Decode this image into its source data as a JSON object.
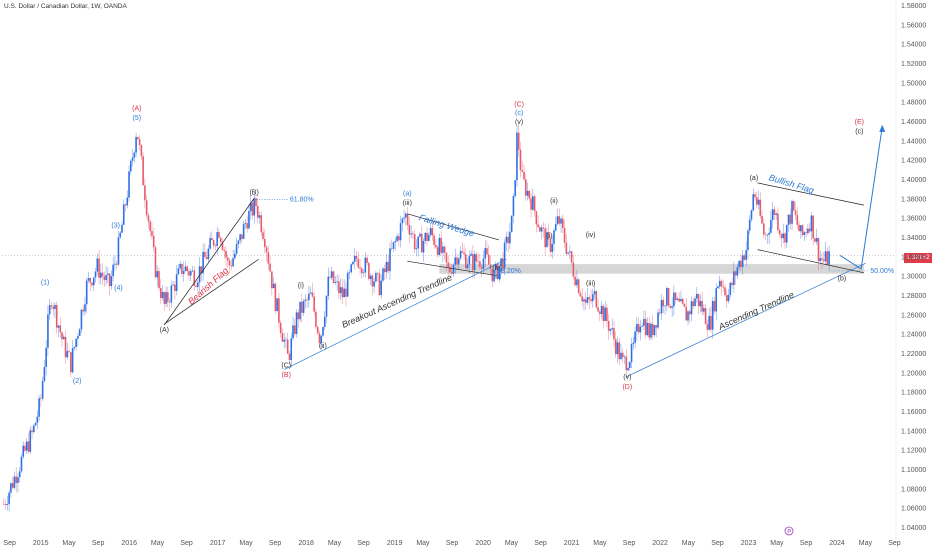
{
  "header": {
    "title": "U.S. Dollar / Canadian Dollar, 1W, OANDA"
  },
  "current_price": {
    "label": "1.32182",
    "color": "#e03b4b"
  },
  "colors": {
    "up": "#2d6fe6",
    "down": "#e85a6a",
    "annotation_blue": "#2d7ad6",
    "annotation_red": "#d9344a",
    "annotation_dark": "#333333",
    "zone": "#c8c8c8"
  },
  "chart_data": {
    "type": "candlestick",
    "title": "U.S. Dollar / Canadian Dollar, 1W, OANDA",
    "x_ticks": [
      "Sep",
      "2015",
      "May",
      "Sep",
      "2016",
      "May",
      "Sep",
      "2017",
      "May",
      "Sep",
      "2018",
      "May",
      "Sep",
      "2019",
      "May",
      "Sep",
      "2020",
      "May",
      "Sep",
      "2021",
      "May",
      "Sep",
      "2022",
      "May",
      "Sep",
      "2023",
      "May",
      "Sep",
      "2024",
      "May",
      "Sep"
    ],
    "y_ticks": [
      "1.58000",
      "1.56000",
      "1.54000",
      "1.52000",
      "1.50000",
      "1.48000",
      "1.46000",
      "1.44000",
      "1.42000",
      "1.40000",
      "1.38000",
      "1.36000",
      "1.34000",
      "1.32000",
      "1.30000",
      "1.28000",
      "1.26000",
      "1.24000",
      "1.22000",
      "1.20000",
      "1.18000",
      "1.16000",
      "1.14000",
      "1.12000",
      "1.10000",
      "1.08000",
      "1.06000",
      "1.04000"
    ],
    "ylim": [
      1.04,
      1.58
    ],
    "xlim": [
      2014.58,
      2024.33
    ],
    "price_path": [
      [
        2014.6,
        1.065
      ],
      [
        2014.75,
        1.1
      ],
      [
        2014.92,
        1.14
      ],
      [
        2015.0,
        1.17
      ],
      [
        2015.08,
        1.25
      ],
      [
        2015.12,
        1.28
      ],
      [
        2015.25,
        1.23
      ],
      [
        2015.33,
        1.21
      ],
      [
        2015.42,
        1.25
      ],
      [
        2015.5,
        1.29
      ],
      [
        2015.62,
        1.31
      ],
      [
        2015.75,
        1.29
      ],
      [
        2015.85,
        1.33
      ],
      [
        2015.95,
        1.39
      ],
      [
        2016.05,
        1.455
      ],
      [
        2016.12,
        1.4
      ],
      [
        2016.25,
        1.31
      ],
      [
        2016.35,
        1.27
      ],
      [
        2016.45,
        1.29
      ],
      [
        2016.55,
        1.31
      ],
      [
        2016.7,
        1.3
      ],
      [
        2016.85,
        1.33
      ],
      [
        2016.95,
        1.35
      ],
      [
        2017.05,
        1.31
      ],
      [
        2017.15,
        1.33
      ],
      [
        2017.25,
        1.36
      ],
      [
        2017.35,
        1.375
      ],
      [
        2017.45,
        1.34
      ],
      [
        2017.55,
        1.28
      ],
      [
        2017.7,
        1.215
      ],
      [
        2017.8,
        1.26
      ],
      [
        2017.95,
        1.28
      ],
      [
        2018.05,
        1.235
      ],
      [
        2018.15,
        1.3
      ],
      [
        2018.3,
        1.28
      ],
      [
        2018.45,
        1.32
      ],
      [
        2018.55,
        1.31
      ],
      [
        2018.7,
        1.29
      ],
      [
        2018.85,
        1.33
      ],
      [
        2018.98,
        1.365
      ],
      [
        2019.1,
        1.33
      ],
      [
        2019.25,
        1.345
      ],
      [
        2019.35,
        1.33
      ],
      [
        2019.45,
        1.305
      ],
      [
        2019.55,
        1.325
      ],
      [
        2019.7,
        1.315
      ],
      [
        2019.85,
        1.32
      ],
      [
        2019.95,
        1.3
      ],
      [
        2020.05,
        1.32
      ],
      [
        2020.15,
        1.36
      ],
      [
        2020.2,
        1.45
      ],
      [
        2020.25,
        1.4
      ],
      [
        2020.35,
        1.38
      ],
      [
        2020.45,
        1.35
      ],
      [
        2020.55,
        1.33
      ],
      [
        2020.65,
        1.36
      ],
      [
        2020.8,
        1.31
      ],
      [
        2020.95,
        1.27
      ],
      [
        2021.05,
        1.28
      ],
      [
        2021.2,
        1.25
      ],
      [
        2021.35,
        1.21
      ],
      [
        2021.45,
        1.22
      ],
      [
        2021.55,
        1.26
      ],
      [
        2021.65,
        1.24
      ],
      [
        2021.8,
        1.28
      ],
      [
        2021.95,
        1.27
      ],
      [
        2022.05,
        1.26
      ],
      [
        2022.15,
        1.28
      ],
      [
        2022.3,
        1.25
      ],
      [
        2022.4,
        1.3
      ],
      [
        2022.5,
        1.28
      ],
      [
        2022.6,
        1.31
      ],
      [
        2022.7,
        1.33
      ],
      [
        2022.78,
        1.39
      ],
      [
        2022.9,
        1.34
      ],
      [
        2023.0,
        1.37
      ],
      [
        2023.1,
        1.34
      ],
      [
        2023.2,
        1.37
      ],
      [
        2023.3,
        1.34
      ],
      [
        2023.4,
        1.36
      ],
      [
        2023.5,
        1.32
      ],
      [
        2023.55,
        1.315
      ],
      [
        2023.6,
        1.322
      ]
    ],
    "annotations": {
      "waves_red": [
        {
          "text": "(A)",
          "x": 2016.05,
          "y": 1.472
        },
        {
          "text": "(C)",
          "x": 2020.22,
          "y": 1.476
        },
        {
          "text": "(D)",
          "x": 2021.4,
          "y": 1.184
        },
        {
          "text": "(B)",
          "x": 2017.68,
          "y": 1.196
        },
        {
          "text": "(E)",
          "x": 2023.93,
          "y": 1.458
        }
      ],
      "waves_blue": [
        {
          "text": "(5)",
          "x": 2016.05,
          "y": 1.462
        },
        {
          "text": "(1)",
          "x": 2015.05,
          "y": 1.292
        },
        {
          "text": "(2)",
          "x": 2015.4,
          "y": 1.19
        },
        {
          "text": "(3)",
          "x": 2015.82,
          "y": 1.351
        },
        {
          "text": "(4)",
          "x": 2015.85,
          "y": 1.286
        },
        {
          "text": "(a)",
          "x": 2019.0,
          "y": 1.384
        },
        {
          "text": "(b)",
          "x": 2019.98,
          "y": 1.298
        },
        {
          "text": "(c)",
          "x": 2020.22,
          "y": 1.467
        }
      ],
      "waves_dark": [
        {
          "text": "(B)",
          "x": 2017.33,
          "y": 1.385
        },
        {
          "text": "(A)",
          "x": 2016.35,
          "y": 1.243
        },
        {
          "text": "(C)",
          "x": 2017.68,
          "y": 1.206
        },
        {
          "text": "(v)",
          "x": 2020.22,
          "y": 1.458
        },
        {
          "text": "(iii)",
          "x": 2019.0,
          "y": 1.374
        },
        {
          "text": "(iv)",
          "x": 2019.98,
          "y": 1.307
        },
        {
          "text": "(i)",
          "x": 2017.84,
          "y": 1.289
        },
        {
          "text": "(ii)",
          "x": 2018.08,
          "y": 1.226
        },
        {
          "text": "(ii)",
          "x": 2020.6,
          "y": 1.376
        },
        {
          "text": "(i)",
          "x": 2020.55,
          "y": 1.34
        },
        {
          "text": "(iv)",
          "x": 2021.0,
          "y": 1.341
        },
        {
          "text": "(iii)",
          "x": 2021.0,
          "y": 1.291
        },
        {
          "text": "(v)",
          "x": 2021.4,
          "y": 1.194
        },
        {
          "text": "(a)",
          "x": 2022.78,
          "y": 1.4
        },
        {
          "text": "(b)",
          "x": 2023.74,
          "y": 1.296
        },
        {
          "text": "(c)",
          "x": 2023.93,
          "y": 1.448
        }
      ],
      "patterns": [
        {
          "text": "Bearish Flag",
          "x": 2016.85,
          "y": 1.288,
          "rotate": -42,
          "color": "red"
        },
        {
          "text": "Falling Wedge",
          "x": 2019.42,
          "y": 1.35,
          "rotate": 17,
          "color": "blue"
        },
        {
          "text": "Breakout Ascending Trendline",
          "x": 2018.9,
          "y": 1.272,
          "rotate": -24,
          "color": "dark"
        },
        {
          "text": "Ascending Trendline",
          "x": 2022.82,
          "y": 1.262,
          "rotate": -24,
          "color": "dark"
        },
        {
          "text": "Bullish Flag",
          "x": 2023.18,
          "y": 1.393,
          "rotate": 17,
          "color": "blue"
        }
      ],
      "fibs": [
        {
          "text": "61.80%",
          "x": 2017.72,
          "y": 1.38
        },
        {
          "text": "38.20%",
          "x": 2019.98,
          "y": 1.306
        },
        {
          "text": "50.00%",
          "x": 2024.05,
          "y": 1.306
        }
      ]
    }
  }
}
